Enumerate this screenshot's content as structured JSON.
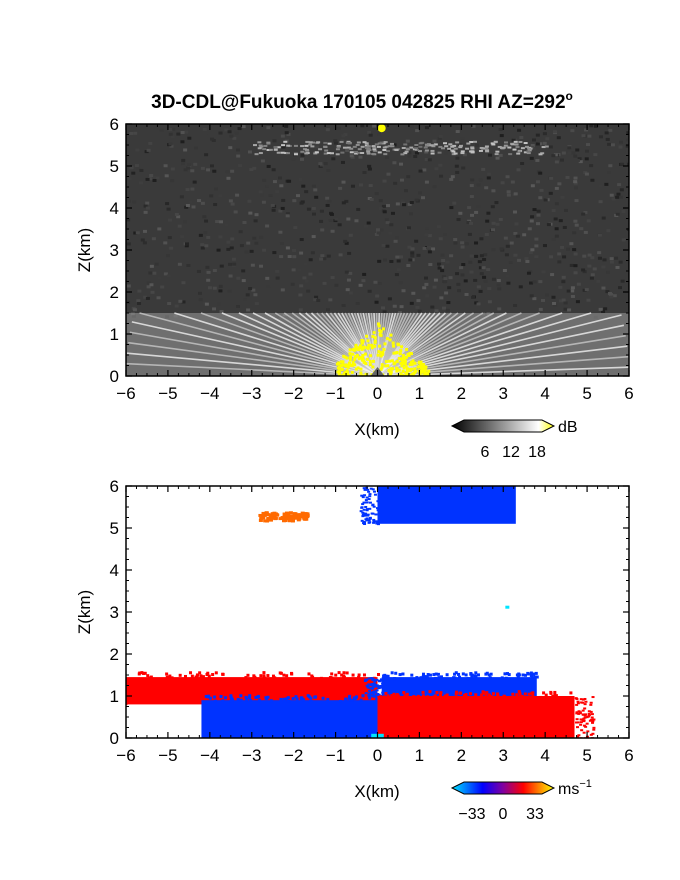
{
  "figure": {
    "title": "3D-CDL@Fukuoka 170105 042825 RHI AZ=292",
    "title_sup": "o"
  },
  "chart_data": [
    {
      "type": "heatmap",
      "panel": "top",
      "variable": "reflectivity",
      "xlabel": "X(km)",
      "ylabel": "Z(km)",
      "xlim": [
        -6,
        6
      ],
      "ylim": [
        0,
        6
      ],
      "xticks": [
        "−6",
        "−5",
        "−4",
        "−3",
        "−2",
        "−1",
        "0",
        "1",
        "2",
        "3",
        "4",
        "5",
        "6"
      ],
      "yticks": [
        "0",
        "1",
        "2",
        "3",
        "4",
        "5",
        "6"
      ],
      "colorbar": {
        "unit": "dB",
        "ticks": [
          "6",
          "12",
          "18"
        ],
        "range": [
          0,
          20
        ],
        "colors": [
          "#000000",
          "#ffffff",
          "#ffff00"
        ]
      },
      "features": [
        {
          "description": "bright fan of beams near ground",
          "x": [
            -6,
            6
          ],
          "z": [
            0,
            1.5
          ],
          "level": 14
        },
        {
          "description": "strong echo above radar (yellow)",
          "x": [
            -1,
            1.2
          ],
          "z": [
            0,
            1.3
          ],
          "level": 20
        },
        {
          "description": "faint cloud layer",
          "x": [
            -3,
            4
          ],
          "z": [
            5.3,
            5.6
          ],
          "level": 10
        },
        {
          "description": "strong spot aloft",
          "x": [
            0.1,
            0.1
          ],
          "z": [
            5.9,
            5.9
          ],
          "level": 20
        }
      ],
      "colors": {
        "background": "#3a3a3a",
        "strong": "#ffff00",
        "bright": "#f0f0f0"
      }
    },
    {
      "type": "heatmap",
      "panel": "bottom",
      "variable": "radial velocity",
      "xlabel": "X(km)",
      "ylabel": "Z(km)",
      "xlim": [
        -6,
        6
      ],
      "ylim": [
        0,
        6
      ],
      "xticks": [
        "−6",
        "−5",
        "−4",
        "−3",
        "−2",
        "−1",
        "0",
        "1",
        "2",
        "3",
        "4",
        "5",
        "6"
      ],
      "yticks": [
        "0",
        "1",
        "2",
        "3",
        "4",
        "5",
        "6"
      ],
      "colorbar": {
        "unit": "ms",
        "unit_sup": "−1",
        "ticks": [
          "−33",
          "0",
          "33"
        ],
        "range": [
          -33,
          33
        ],
        "colors": [
          "#00e5ff",
          "#0000ff",
          "#ff0000",
          "#ffff00"
        ]
      },
      "regions": [
        {
          "sign": "positive",
          "x": [
            -6,
            0
          ],
          "z": [
            0.8,
            1.45
          ]
        },
        {
          "sign": "negative",
          "x": [
            -4.2,
            0
          ],
          "z": [
            0,
            0.9
          ]
        },
        {
          "sign": "negative",
          "x": [
            0.1,
            3.8
          ],
          "z": [
            1.0,
            1.45
          ]
        },
        {
          "sign": "positive",
          "x": [
            0,
            4.7
          ],
          "z": [
            0,
            1.0
          ]
        },
        {
          "sign": "negative",
          "x": [
            0,
            3.3
          ],
          "z": [
            5.1,
            6.0
          ]
        },
        {
          "sign": "positive",
          "x": [
            -2.9,
            -1.7
          ],
          "z": [
            5.2,
            5.4
          ]
        }
      ],
      "colors": {
        "positive": "#ff0000",
        "negative": "#0033ff",
        "near_zero": "#00e5ff",
        "orange": "#ff6a00"
      }
    }
  ]
}
